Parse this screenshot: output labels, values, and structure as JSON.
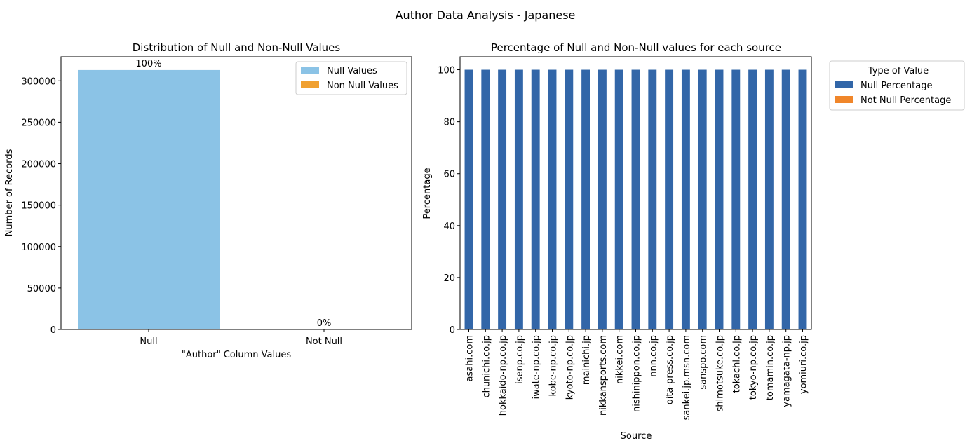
{
  "figure": {
    "suptitle": "Author Data Analysis - Japanese"
  },
  "chart_data": [
    {
      "type": "bar",
      "title": "Distribution of Null and Non-Null Values",
      "xlabel": "\"Author\" Column Values",
      "ylabel": "Number of Records",
      "categories": [
        "Null",
        "Not Null"
      ],
      "values": [
        313000,
        0
      ],
      "bar_labels": [
        "100%",
        "0%"
      ],
      "bar_colors": [
        "#8bc3e6",
        "#f0a030"
      ],
      "ylim": [
        0,
        329000
      ],
      "yticks": [
        0,
        50000,
        100000,
        150000,
        200000,
        250000,
        300000
      ],
      "legend": {
        "placement": "top-right",
        "entries": [
          {
            "label": "Null Values",
            "color": "#8bc3e6"
          },
          {
            "label": "Non Null Values",
            "color": "#f0a030"
          }
        ]
      },
      "grid": false
    },
    {
      "type": "bar",
      "stacked": true,
      "title": "Percentage of Null and Non-Null values for each source",
      "xlabel": "Source",
      "ylabel": "Percentage",
      "categories": [
        "asahi.com",
        "chunichi.co.jp",
        "hokkaido-np.co.jp",
        "isenp.co.jp",
        "iwate-np.co.jp",
        "kobe-np.co.jp",
        "kyoto-np.co.jp",
        "mainichi.jp",
        "nikkansports.com",
        "nikkei.com",
        "nishinippon.co.jp",
        "nnn.co.jp",
        "oita-press.co.jp",
        "sankei.jp.msn.com",
        "sanspo.com",
        "shimotsuke.co.jp",
        "tokachi.co.jp",
        "tokyo-np.co.jp",
        "tomamin.co.jp",
        "yamagata-np.jp",
        "yomiuri.co.jp"
      ],
      "series": [
        {
          "name": "Null Percentage",
          "color": "#3266a8",
          "values": [
            100,
            100,
            100,
            100,
            100,
            100,
            100,
            100,
            100,
            100,
            100,
            100,
            100,
            100,
            100,
            100,
            100,
            100,
            100,
            100,
            100
          ]
        },
        {
          "name": "Not Null Percentage",
          "color": "#f0862a",
          "values": [
            0,
            0,
            0,
            0,
            0,
            0,
            0,
            0,
            0,
            0,
            0,
            0,
            0,
            0,
            0,
            0,
            0,
            0,
            0,
            0,
            0
          ]
        }
      ],
      "ylim": [
        0,
        105
      ],
      "yticks": [
        0,
        20,
        40,
        60,
        80,
        100
      ],
      "legend": {
        "placement": "outside-right",
        "title": "Type of Value"
      },
      "grid": false
    }
  ]
}
